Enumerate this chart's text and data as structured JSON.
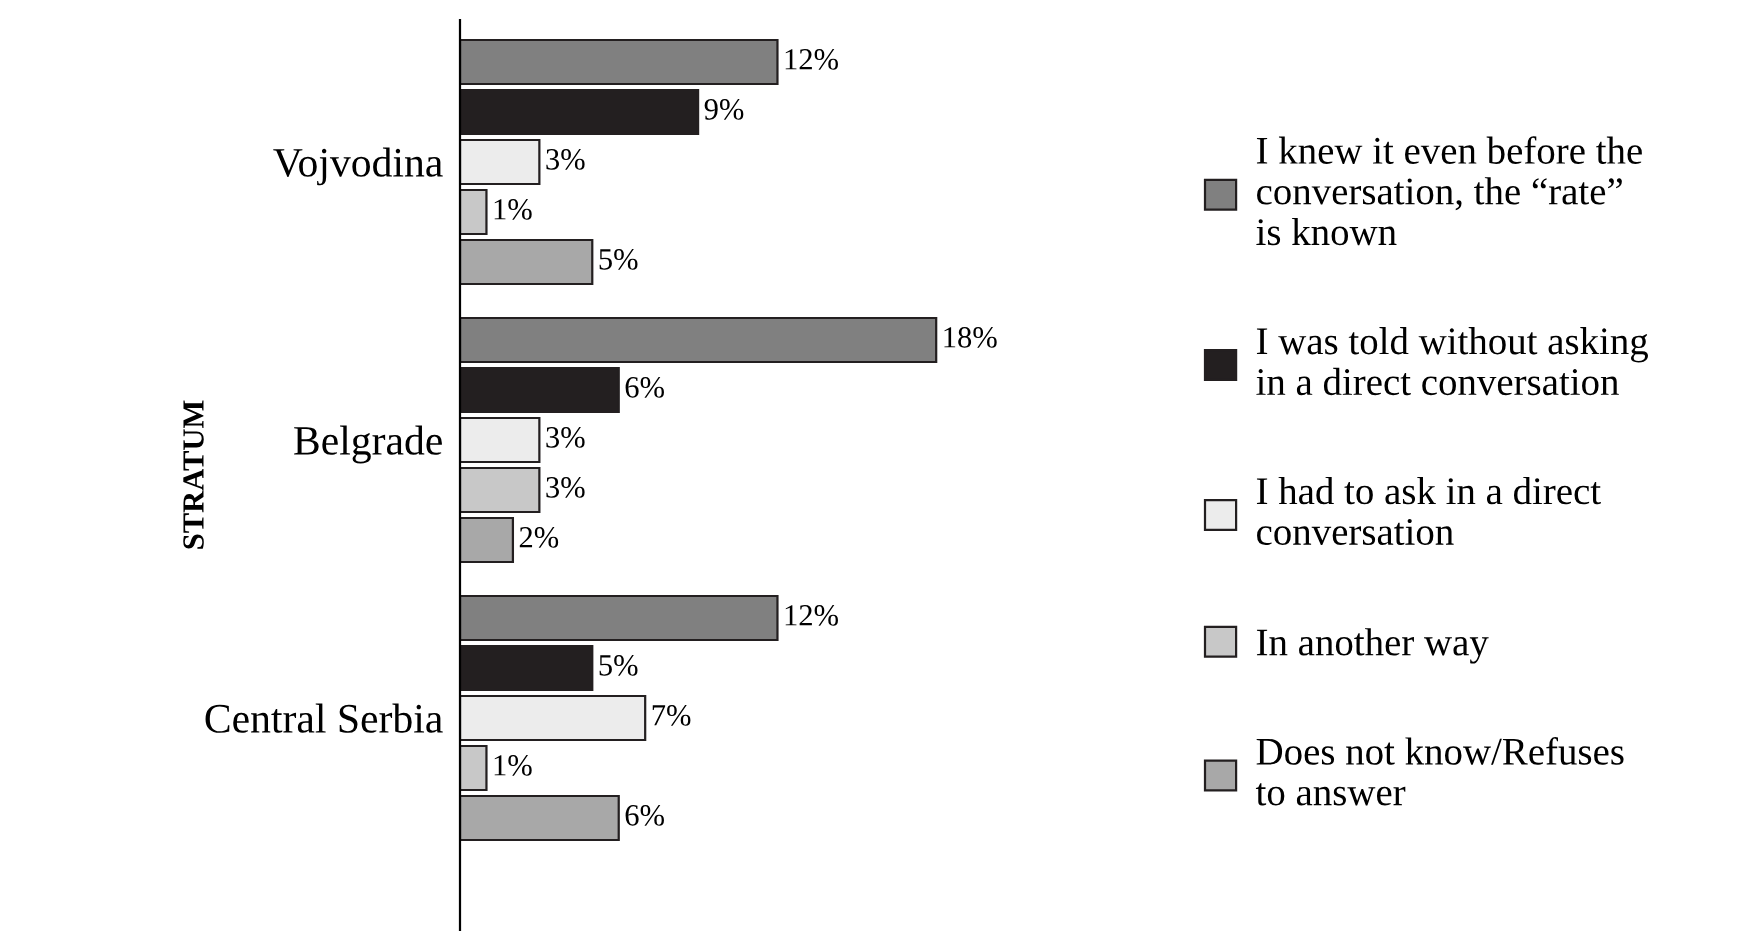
{
  "chart_data": {
    "type": "bar",
    "orientation": "horizontal",
    "ylabel": "STRATUM",
    "categories": [
      "Vojvodina",
      "Belgrade",
      "Central Serbia"
    ],
    "series": [
      {
        "name": "I knew it even before the\nconversation, the “rate”\nis known",
        "color": "#808080",
        "values": [
          12,
          18,
          12
        ],
        "value_labels": [
          "12%",
          "18%",
          "12%"
        ]
      },
      {
        "name": "I was told without asking\nin a direct conversation",
        "color": "#231f20",
        "values": [
          9,
          6,
          5
        ],
        "value_labels": [
          "9%",
          "6%",
          "5%"
        ]
      },
      {
        "name": "I had to ask in a direct\nconversation",
        "color": "#ececec",
        "values": [
          3,
          3,
          7
        ],
        "value_labels": [
          "3%",
          "3%",
          "7%"
        ]
      },
      {
        "name": "In another way",
        "color": "#c8c8c8",
        "values": [
          1,
          3,
          1
        ],
        "value_labels": [
          "1%",
          "3%",
          "1%"
        ]
      },
      {
        "name": "Does not know/Refuses\nto answer",
        "color": "#a8a8a8",
        "values": [
          5,
          2,
          6
        ],
        "value_labels": [
          "5%",
          "2%",
          "6%"
        ]
      }
    ],
    "tick_labels": "y",
    "legend": "right",
    "grid": false
  }
}
